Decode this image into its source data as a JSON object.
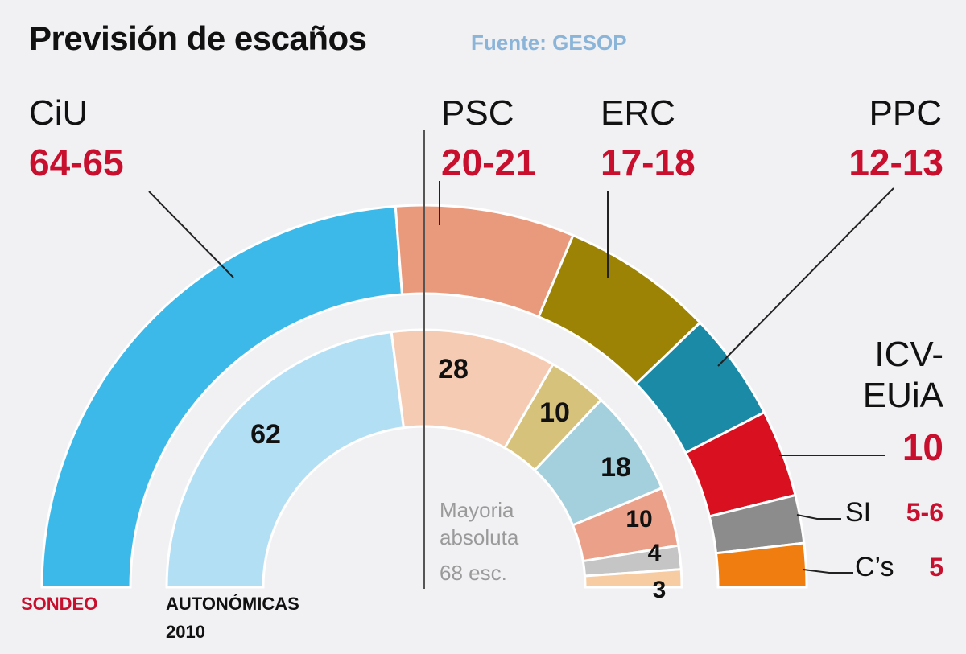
{
  "chart_data": {
    "type": "pie",
    "subtype": "semicircle-parliament",
    "title": "Previsión de escaños",
    "source": "Fuente: GESOP",
    "total_seats": 135,
    "majority": {
      "label_lines": [
        "Mayoria",
        "absoluta",
        "68 esc."
      ],
      "seats": 68
    },
    "rings": [
      {
        "name": "SONDEO",
        "label_color": "#c8102e",
        "segments": [
          {
            "party": "CiU",
            "label": "64-65",
            "value": 64.5,
            "color": "#3db9e9"
          },
          {
            "party": "PSC",
            "label": "20-21",
            "value": 20.5,
            "color": "#e99a7c"
          },
          {
            "party": "ERC",
            "label": "17-18",
            "value": 17.5,
            "color": "#9c8205"
          },
          {
            "party": "PPC",
            "label": "12-13",
            "value": 12.5,
            "color": "#1a8aa6"
          },
          {
            "party": "ICV-EUiA",
            "label": "10",
            "value": 10,
            "color": "#d9101f"
          },
          {
            "party": "SI",
            "label": "5-6",
            "value": 5.5,
            "color": "#8c8c8c"
          },
          {
            "party": "C’s",
            "label": "5",
            "value": 5,
            "color": "#ef7d0f"
          }
        ]
      },
      {
        "name": "AUTONÓMICAS 2010",
        "label_color": "#111111",
        "segments": [
          {
            "party": "CiU",
            "label": "62",
            "value": 62,
            "color": "#b3dff5"
          },
          {
            "party": "PSC",
            "label": "28",
            "value": 28,
            "color": "#f6cbb4"
          },
          {
            "party": "ERC",
            "label": "10",
            "value": 10,
            "color": "#d7c27c"
          },
          {
            "party": "PPC",
            "label": "18",
            "value": 18,
            "color": "#a4cfdc"
          },
          {
            "party": "ICV-EUiA",
            "label": "10",
            "value": 10,
            "color": "#eba08a"
          },
          {
            "party": "SI",
            "label": "4",
            "value": 4,
            "color": "#c5c5c5"
          },
          {
            "party": "C’s",
            "label": "3",
            "value": 3,
            "color": "#f8cca2"
          }
        ]
      }
    ],
    "party_labels": [
      {
        "name": "CiU",
        "seats": "64-65"
      },
      {
        "name": "PSC",
        "seats": "20-21"
      },
      {
        "name": "ERC",
        "seats": "17-18"
      },
      {
        "name": "PPC",
        "seats": "12-13"
      },
      {
        "name_lines": [
          "ICV-",
          "EUiA"
        ],
        "seats": "10"
      },
      {
        "name": "SI",
        "seats": "5-6"
      },
      {
        "name": "C’s",
        "seats": "5"
      }
    ],
    "footer": {
      "sondeo": "SONDEO",
      "autonomicas_lines": [
        "AUTONÓMICAS",
        "2010"
      ]
    }
  }
}
